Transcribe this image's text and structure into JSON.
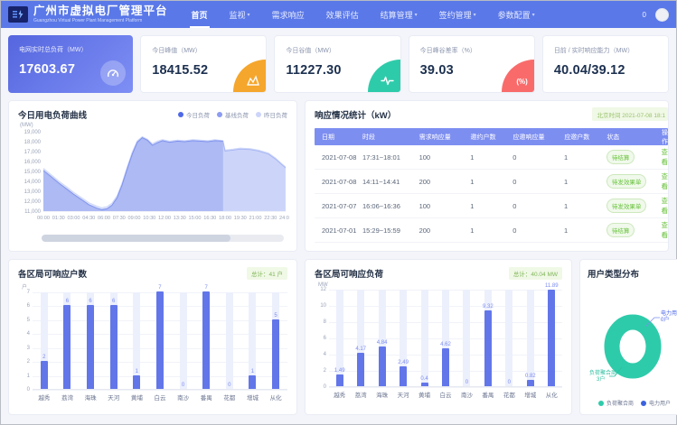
{
  "navbar": {
    "title": "广州市虚拟电厂管理平台",
    "subtitle": "Guangzhou Virtual Power Plant Management Platform",
    "items": [
      {
        "label": "首页",
        "active": true,
        "caret": false
      },
      {
        "label": "监视",
        "active": false,
        "caret": true
      },
      {
        "label": "需求响应",
        "active": false,
        "caret": false
      },
      {
        "label": "效果评估",
        "active": false,
        "caret": false
      },
      {
        "label": "结算管理",
        "active": false,
        "caret": true
      },
      {
        "label": "签约管理",
        "active": false,
        "caret": true
      },
      {
        "label": "参数配置",
        "active": false,
        "caret": true
      }
    ],
    "message_count": "0"
  },
  "stat_cards": [
    {
      "label": "电网实时总负荷（MW）",
      "value": "17603.67",
      "icon": "gauge-icon",
      "accent": "#5a6fe2"
    },
    {
      "label": "今日峰值（MW）",
      "value": "18415.52",
      "icon": "peak-chart-icon",
      "accent": "#f5a62c"
    },
    {
      "label": "今日谷值（MW）",
      "value": "11227.30",
      "icon": "pulse-icon",
      "accent": "#2ecbaa"
    },
    {
      "label": "今日峰谷差率（%）",
      "value": "39.03",
      "icon": "percent-icon",
      "accent": "#f96b6b"
    },
    {
      "label": "日前 / 实时响应能力（MW）",
      "value": "40.04/39.12",
      "icon": "none",
      "accent": ""
    }
  ],
  "response_table": {
    "title": "响应情况统计（kW）",
    "timestamp": "北京时间 2021-07-08 18:1",
    "headers": [
      "日期",
      "时段",
      "需求响应量",
      "邀约户数",
      "应邀响应量",
      "应邀户数",
      "状态",
      "操作"
    ],
    "rows": [
      {
        "date": "2021-07-08",
        "period": "17:31~18:01",
        "demand": "100",
        "invited": "1",
        "responded": "0",
        "responded_users": "1",
        "status": "待结算",
        "action": "查看"
      },
      {
        "date": "2021-07-08",
        "period": "14:11~14:41",
        "demand": "200",
        "invited": "1",
        "responded": "0",
        "responded_users": "1",
        "status": "待发效果单",
        "action": "查看"
      },
      {
        "date": "2021-07-07",
        "period": "16:06~16:36",
        "demand": "100",
        "invited": "1",
        "responded": "0",
        "responded_users": "1",
        "status": "待发效果单",
        "action": "查看"
      },
      {
        "date": "2021-07-01",
        "period": "15:29~15:59",
        "demand": "200",
        "invited": "1",
        "responded": "0",
        "responded_users": "1",
        "status": "待结算",
        "action": "查看"
      }
    ]
  },
  "chart_data": [
    {
      "type": "area",
      "title": "今日用电负荷曲线",
      "ylabel": "(MW)",
      "ylim": [
        11000,
        19000
      ],
      "yticks": [
        "19,000",
        "18,000",
        "17,000",
        "16,000",
        "15,000",
        "14,000",
        "13,000",
        "12,000",
        "11,000"
      ],
      "xticks": [
        "00:00",
        "01:30",
        "03:00",
        "04:30",
        "06:00",
        "07:30",
        "09:00",
        "10:30",
        "12:00",
        "13:30",
        "15:00",
        "16:30",
        "18:00",
        "19:30",
        "21:00",
        "22:30",
        "24:00"
      ],
      "legend": [
        {
          "name": "今日负荷",
          "color": "#4e68e8"
        },
        {
          "name": "基线负荷",
          "color": "#8b9cf2"
        },
        {
          "name": "昨日负荷",
          "color": "#ccd5f9"
        }
      ],
      "series": [
        {
          "name": "昨日负荷",
          "fill": "#e1e7fb",
          "stroke": "#ccd6f8",
          "points": [
            [
              0,
              15300
            ],
            [
              0.8,
              14650
            ],
            [
              1.5,
              14050
            ],
            [
              2.3,
              13450
            ],
            [
              3,
              12900
            ],
            [
              3.8,
              12350
            ],
            [
              4.5,
              11850
            ],
            [
              5.3,
              11500
            ],
            [
              5.8,
              11350
            ],
            [
              6.3,
              11450
            ],
            [
              6.8,
              11800
            ],
            [
              7.3,
              12550
            ],
            [
              7.8,
              13850
            ],
            [
              8.3,
              15450
            ],
            [
              8.8,
              16950
            ],
            [
              9.3,
              18100
            ],
            [
              9.8,
              18500
            ],
            [
              10.3,
              18250
            ],
            [
              10.8,
              17800
            ],
            [
              11.3,
              18050
            ],
            [
              11.8,
              18200
            ],
            [
              12.5,
              18050
            ],
            [
              13.3,
              18150
            ],
            [
              14,
              18100
            ],
            [
              14.8,
              18200
            ],
            [
              15.5,
              18150
            ],
            [
              16.3,
              18100
            ],
            [
              17,
              18200
            ],
            [
              17.8,
              18100
            ],
            [
              18,
              17150
            ],
            [
              18.8,
              17250
            ],
            [
              19.5,
              17350
            ],
            [
              20.5,
              17300
            ],
            [
              21.3,
              17150
            ],
            [
              22.3,
              16850
            ],
            [
              23,
              16350
            ],
            [
              23.6,
              15800
            ],
            [
              24,
              15450
            ]
          ]
        },
        {
          "name": "基线负荷",
          "fill": "#c9d3f8",
          "stroke": "#a9b7f3",
          "points": [
            [
              0,
              14950
            ],
            [
              0.8,
              14300
            ],
            [
              1.5,
              13700
            ],
            [
              2.3,
              13100
            ],
            [
              3,
              12550
            ],
            [
              3.8,
              12000
            ],
            [
              4.5,
              11550
            ],
            [
              5.3,
              11200
            ],
            [
              5.8,
              11050
            ],
            [
              6.3,
              11150
            ],
            [
              6.8,
              11500
            ],
            [
              7.3,
              12250
            ],
            [
              7.8,
              13550
            ],
            [
              8.3,
              15150
            ],
            [
              8.8,
              16650
            ],
            [
              9.3,
              17850
            ],
            [
              9.8,
              18300
            ],
            [
              10.3,
              18050
            ],
            [
              10.8,
              17550
            ],
            [
              11.3,
              17800
            ],
            [
              11.8,
              18000
            ],
            [
              12.5,
              17850
            ],
            [
              13.3,
              17950
            ],
            [
              14,
              17900
            ],
            [
              14.8,
              18000
            ],
            [
              15.5,
              17950
            ],
            [
              16.3,
              17900
            ],
            [
              17,
              18000
            ],
            [
              17.8,
              17950
            ],
            [
              18,
              17050
            ],
            [
              18.8,
              17150
            ],
            [
              19.5,
              17250
            ],
            [
              20.5,
              17200
            ],
            [
              21.3,
              17050
            ],
            [
              22.3,
              16750
            ],
            [
              23,
              16250
            ],
            [
              23.6,
              15700
            ],
            [
              24,
              15350
            ]
          ]
        },
        {
          "name": "今日负荷",
          "fill": "#aab7f3",
          "stroke": "#7f92ee",
          "points": [
            [
              0,
              15100
            ],
            [
              0.8,
              14450
            ],
            [
              1.5,
              13850
            ],
            [
              2.3,
              13250
            ],
            [
              3,
              12700
            ],
            [
              3.8,
              12150
            ],
            [
              4.5,
              11650
            ],
            [
              5.3,
              11300
            ],
            [
              5.8,
              11150
            ],
            [
              6.3,
              11250
            ],
            [
              6.8,
              11600
            ],
            [
              7.3,
              12350
            ],
            [
              7.8,
              13650
            ],
            [
              8.3,
              15250
            ],
            [
              8.8,
              16750
            ],
            [
              9.3,
              17950
            ],
            [
              9.8,
              18400
            ],
            [
              10.3,
              18150
            ],
            [
              10.8,
              17650
            ],
            [
              11.3,
              17900
            ],
            [
              11.8,
              18100
            ],
            [
              12.5,
              17950
            ],
            [
              13.3,
              18050
            ],
            [
              14,
              18000
            ],
            [
              14.8,
              18100
            ],
            [
              15.5,
              18050
            ],
            [
              16.3,
              18000
            ],
            [
              17,
              18100
            ],
            [
              17.8,
              18050
            ]
          ]
        }
      ]
    },
    {
      "type": "bar",
      "title": "各区局可响应户数",
      "total_badge": "总计：41 户",
      "ylabel": "户",
      "ylim": [
        0,
        7
      ],
      "yticks": [
        0,
        1,
        2,
        3,
        4,
        5,
        6,
        7
      ],
      "categories": [
        "越秀",
        "荔湾",
        "海珠",
        "天河",
        "黄埔",
        "白云",
        "南沙",
        "番禺",
        "花都",
        "增城",
        "从化"
      ],
      "values": [
        2,
        6,
        6,
        6,
        1,
        7,
        0,
        7,
        0,
        1,
        5
      ],
      "labels": [
        "2",
        "6",
        "6",
        "6",
        "1",
        "7",
        "0",
        "7",
        "0",
        "1",
        "5"
      ]
    },
    {
      "type": "bar",
      "title": "各区局可响应负荷",
      "total_badge": "总计：40.04 MW",
      "ylabel": "MW",
      "ylim": [
        0,
        12
      ],
      "yticks": [
        0,
        2,
        4,
        6,
        8,
        10,
        12
      ],
      "categories": [
        "越秀",
        "荔湾",
        "海珠",
        "天河",
        "黄埔",
        "白云",
        "南沙",
        "番禺",
        "花都",
        "增城",
        "从化"
      ],
      "values": [
        1.49,
        4.17,
        4.84,
        2.49,
        0.4,
        4.62,
        0,
        9.32,
        0,
        0.82,
        11.89
      ],
      "labels": [
        "1.49",
        "4.17",
        "4.84",
        "2.49",
        "0.4",
        "4.62",
        "0",
        "9.32",
        "0",
        "0.82",
        "11.89"
      ]
    },
    {
      "type": "pie",
      "title": "用户类型分布",
      "slices": [
        {
          "label": "负荷聚合商",
          "value": 3,
          "color": "#2ecbaa"
        },
        {
          "label": "电力用户",
          "value": 0,
          "color": "#3a62e0"
        }
      ],
      "callouts": [
        {
          "lines": [
            "电力用户",
            "0户"
          ],
          "color": "#4a66e8"
        },
        {
          "lines": [
            "负荷聚合商",
            "3户"
          ],
          "color": "#2ebfa0"
        }
      ]
    }
  ]
}
